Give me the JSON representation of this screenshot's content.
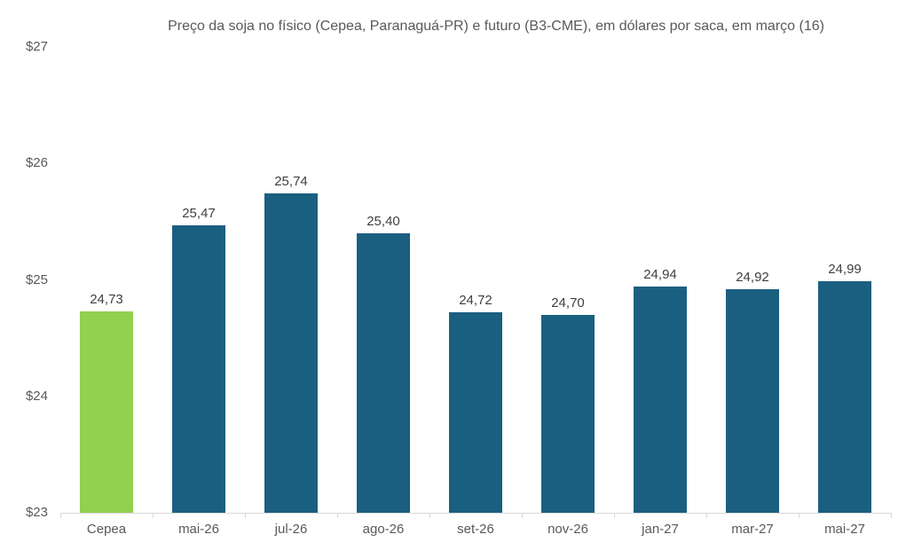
{
  "chart_data": {
    "type": "bar",
    "title": "Preço da soja no físico (Cepea, Paranaguá-PR) e futuro (B3-CME), em dólares por saca, em março (16)",
    "categories": [
      "Cepea",
      "mai-26",
      "jul-26",
      "ago-26",
      "set-26",
      "nov-26",
      "jan-27",
      "mar-27",
      "mai-27"
    ],
    "values": [
      24.73,
      25.47,
      25.74,
      25.4,
      24.72,
      24.7,
      24.94,
      24.92,
      24.99
    ],
    "value_labels": [
      "24,73",
      "25,47",
      "25,74",
      "25,40",
      "24,72",
      "24,70",
      "24,94",
      "24,92",
      "24,99"
    ],
    "xlabel": "",
    "ylabel": "",
    "ylim": [
      23,
      27
    ],
    "y_ticks": [
      27,
      26,
      25,
      24,
      23
    ],
    "y_tick_labels": [
      "$27",
      "$26",
      "$25",
      "$24",
      "$23"
    ],
    "grid": false,
    "legend": false,
    "colors": {
      "highlight_bar": "#92d050",
      "default_bar": "#1b5f80",
      "axis_line": "#d9d9d9",
      "title_text": "#595959",
      "value_label_text": "#404040",
      "tick_label_text": "#595959"
    },
    "highlight_index": 0
  }
}
